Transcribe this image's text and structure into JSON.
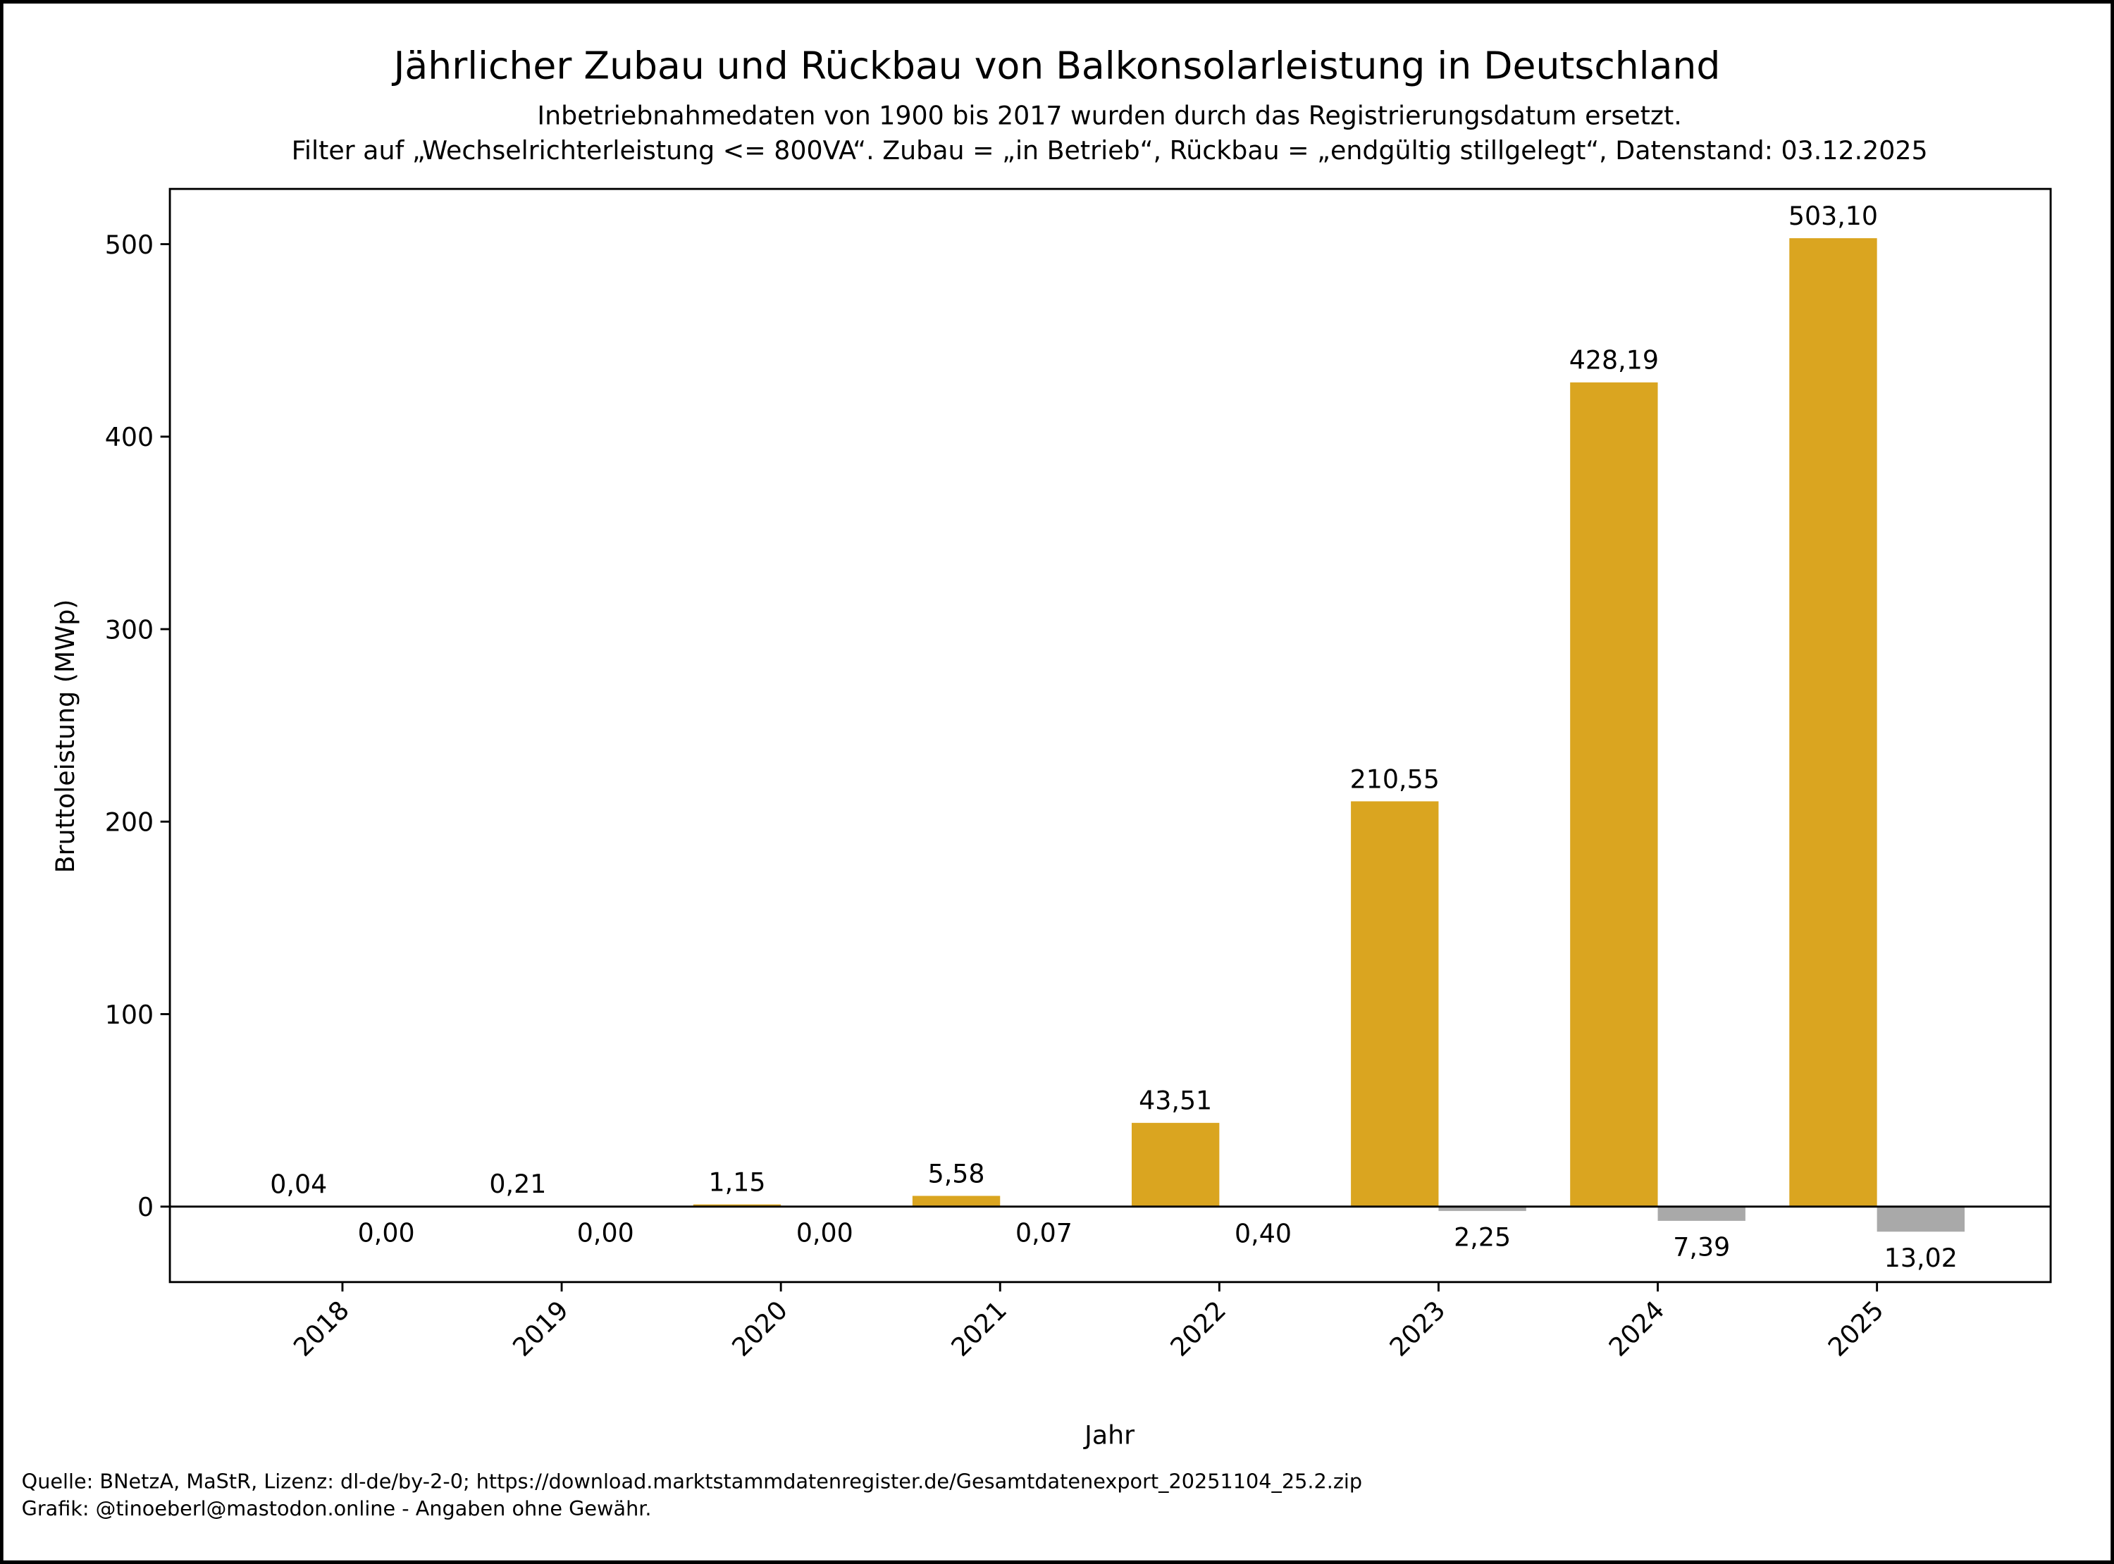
{
  "chart_data": {
    "type": "bar",
    "title": "Jährlicher Zubau und Rückbau von Balkonsolarleistung in Deutschland",
    "subtitle_lines": [
      "Inbetriebnahmedaten von 1900 bis 2017 wurden durch das Registrierungsdatum ersetzt.",
      "Filter auf „Wechselrichterleistung <= 800VA“. Zubau = „in Betrieb“, Rückbau = „endgültig stillgelegt“, Datenstand: 03.12.2025"
    ],
    "xlabel": "Jahr",
    "ylabel": "Bruttoleistung (MWp)",
    "categories": [
      "2018",
      "2019",
      "2020",
      "2021",
      "2022",
      "2023",
      "2024",
      "2025"
    ],
    "series": [
      {
        "name": "Zubau",
        "color": "#DAA520",
        "values": [
          0.04,
          0.21,
          1.15,
          5.58,
          43.51,
          210.55,
          428.19,
          503.1
        ],
        "labels": [
          "0,04",
          "0,21",
          "1,15",
          "5,58",
          "43,51",
          "210,55",
          "428,19",
          "503,10"
        ]
      },
      {
        "name": "Rückbau",
        "color": "#A9A9A9",
        "values": [
          -0.0,
          -0.0,
          -0.0,
          -0.07,
          -0.4,
          -2.25,
          -7.39,
          -13.02
        ],
        "labels": [
          "0,00",
          "0,00",
          "0,00",
          "0,07",
          "0,40",
          "2,25",
          "7,39",
          "13,02"
        ]
      }
    ],
    "yticks": [
      0,
      100,
      200,
      300,
      400,
      500
    ],
    "ylim": [
      -39.2,
      528.7
    ],
    "grid": false,
    "legend": "none"
  },
  "footer": {
    "source": "Quelle: BNetzA, MaStR, Lizenz: dl-de/by-2-0; https://download.marktstammdatenregister.de/Gesamtdatenexport_20251104_25.2.zip",
    "credit": "Grafik: @tinoeberl@mastodon.online - Angaben ohne Gewähr."
  }
}
